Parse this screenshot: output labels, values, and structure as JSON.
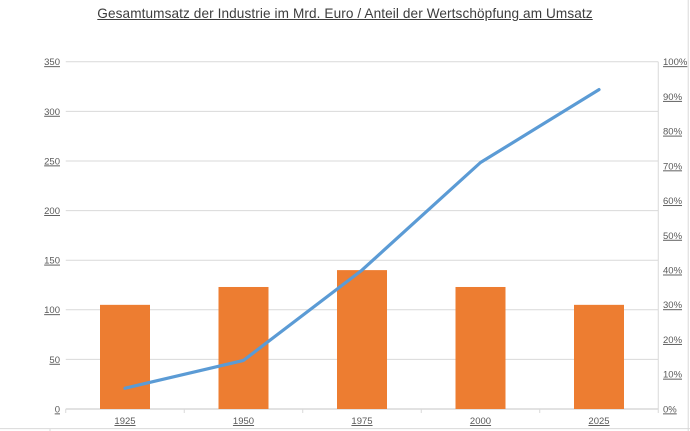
{
  "chart_data": {
    "type": "combo",
    "title": "Gesamtumsatz der Industrie im Mrd. Euro / Anteil der Wertschöpfung am Umsatz",
    "categories": [
      "1925",
      "1950",
      "1975",
      "2000",
      "2025"
    ],
    "series": [
      {
        "name": "Gesamtumsatz der Industrie im Mrd. Euro",
        "type": "bar",
        "axis": "left",
        "values": [
          105,
          123,
          140,
          123,
          105
        ],
        "color": "#ED7D31"
      },
      {
        "name": "Anteil der Wertschöpfung am Umsatz",
        "type": "line",
        "axis": "right",
        "unit": "%",
        "values": [
          6,
          14,
          40,
          71,
          92
        ],
        "color": "#5B9BD5"
      }
    ],
    "left_axis": {
      "min": 0,
      "max": 350,
      "step": 50,
      "tick_labels": [
        "0",
        "50",
        "100",
        "150",
        "200",
        "250",
        "300",
        "350"
      ]
    },
    "right_axis": {
      "min": 0,
      "max": 100,
      "step": 10,
      "tick_labels": [
        "0%",
        "10%",
        "20%",
        "30%",
        "40%",
        "50%",
        "60%",
        "70%",
        "80%",
        "90%",
        "100%"
      ]
    },
    "grid": true,
    "legend": "none",
    "styles": {
      "background": "#FFFFFF",
      "grid_color": "#D9D9D9",
      "axis_line_color": "#C6C6C6",
      "tick_label_color": "#595959",
      "title_color": "#3D3D3D",
      "labels_underlined": true
    }
  }
}
